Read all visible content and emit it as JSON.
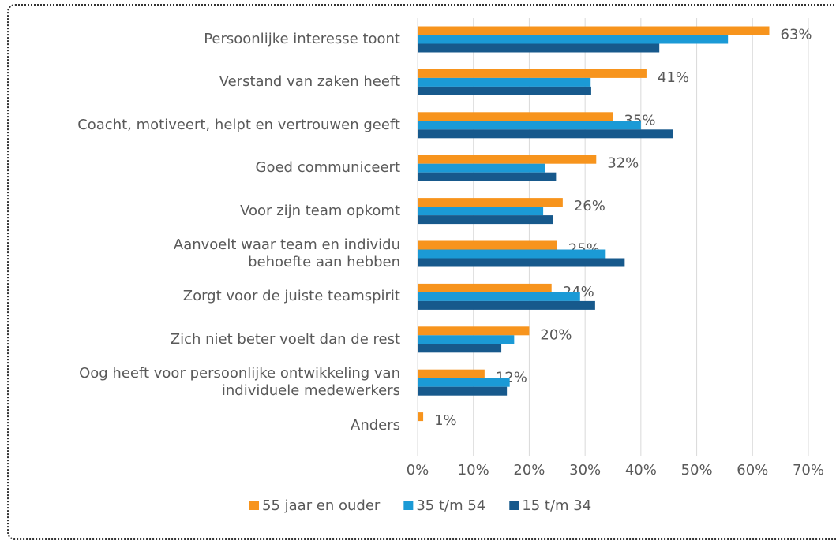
{
  "chart_data": {
    "type": "bar",
    "orientation": "horizontal",
    "categories": [
      "Persoonlijke interesse toont",
      "Verstand van zaken heeft",
      "Coacht, motiveert, helpt en vertrouwen geeft",
      "Goed communiceert",
      "Voor zijn team opkomt",
      "Aanvoelt waar team en individu\nbehoefte aan hebben",
      "Zorgt voor de juiste teamspirit",
      "Zich niet beter voelt dan de rest",
      "Oog heeft voor persoonlijke ontwikkeling van\nindividuele medewerkers",
      "Anders"
    ],
    "series": [
      {
        "name": "55 jaar en ouder",
        "color": "#f7941d",
        "values": [
          63,
          41,
          35,
          32,
          26,
          25,
          24,
          20,
          12,
          1
        ],
        "value_labels": [
          "63%",
          "41%",
          "35%",
          "32%",
          "26%",
          "25%",
          "24%",
          "20%",
          "12%",
          "1%"
        ]
      },
      {
        "name": "35 t/m 54",
        "color": "#1b9ad6",
        "values": [
          55.6,
          31,
          40,
          22.9,
          22.5,
          33.7,
          29.1,
          17.3,
          16.5,
          0
        ]
      },
      {
        "name": "15 t/m 34",
        "color": "#17598c",
        "values": [
          43.3,
          31.1,
          45.8,
          24.8,
          24.3,
          37.1,
          31.8,
          15,
          16,
          0
        ]
      }
    ],
    "xlim": [
      0,
      70
    ],
    "xticks": [
      {
        "value": 0,
        "label": "0%"
      },
      {
        "value": 10,
        "label": "10%"
      },
      {
        "value": 20,
        "label": "20%"
      },
      {
        "value": 30,
        "label": "30%"
      },
      {
        "value": 40,
        "label": "40%"
      },
      {
        "value": 50,
        "label": "50%"
      },
      {
        "value": 60,
        "label": "60%"
      },
      {
        "value": 70,
        "label": "70%"
      }
    ],
    "grid": true,
    "legend": "bottom"
  }
}
